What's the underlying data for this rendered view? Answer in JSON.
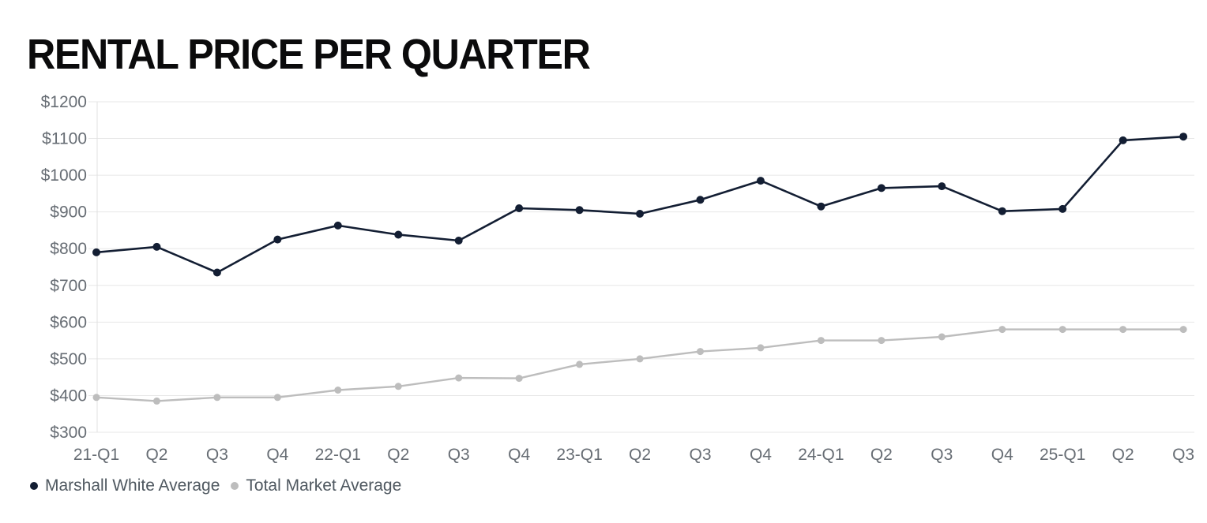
{
  "title": "RENTAL PRICE PER QUARTER",
  "colors": {
    "title": "#0b0b0c",
    "grid": "#e7e7e7",
    "axis": "#e0e0e0",
    "tick_text": "#676d74",
    "legend_text": "#4f5860",
    "marshall_white": "#131e33",
    "total_market": "#bdbdbd"
  },
  "chart_data": {
    "type": "line",
    "title": "RENTAL PRICE PER QUARTER",
    "x": [
      "21-Q1",
      "Q2",
      "Q3",
      "Q4",
      "22-Q1",
      "Q2",
      "Q3",
      "Q4",
      "23-Q1",
      "Q2",
      "Q3",
      "Q4",
      "24-Q1",
      "Q2",
      "Q3",
      "Q4",
      "25-Q1",
      "Q2",
      "Q3"
    ],
    "series": [
      {
        "name": "Marshall White Average",
        "color": "#131e33",
        "values": [
          790,
          805,
          735,
          825,
          863,
          838,
          822,
          910,
          905,
          895,
          933,
          985,
          915,
          965,
          970,
          902,
          908,
          1095,
          1105
        ]
      },
      {
        "name": "Total Market Average",
        "color": "#bdbdbd",
        "values": [
          395,
          385,
          395,
          395,
          415,
          425,
          448,
          447,
          485,
          500,
          520,
          530,
          550,
          550,
          560,
          580,
          580,
          580,
          580
        ]
      }
    ],
    "y_ticks": [
      {
        "value": 1200,
        "label": "$1200"
      },
      {
        "value": 1100,
        "label": "$1100"
      },
      {
        "value": 1000,
        "label": "$1000"
      },
      {
        "value": 900,
        "label": "$900"
      },
      {
        "value": 800,
        "label": "$800"
      },
      {
        "value": 700,
        "label": "$700"
      },
      {
        "value": 600,
        "label": "$600"
      },
      {
        "value": 500,
        "label": "$500"
      },
      {
        "value": 400,
        "label": "$400"
      },
      {
        "value": 300,
        "label": "$300"
      }
    ],
    "ylim": [
      300,
      1200
    ],
    "grid": true,
    "legend_position": "bottom-left"
  }
}
